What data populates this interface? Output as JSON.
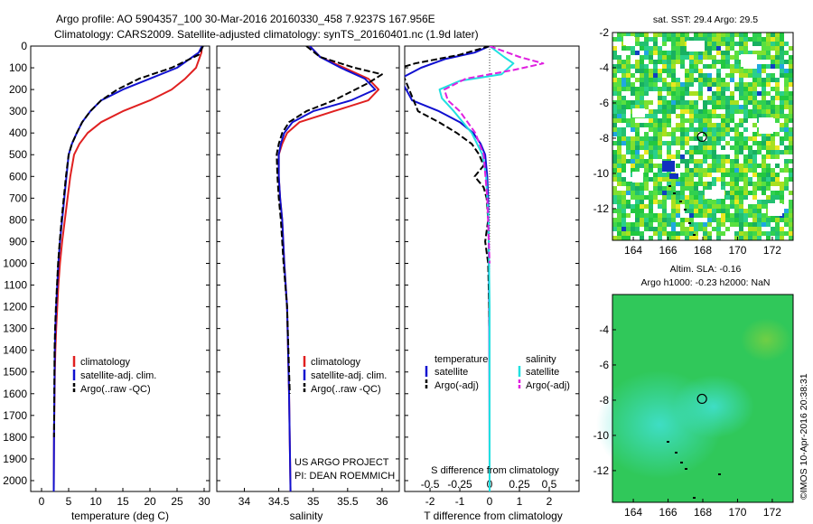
{
  "header": {
    "line1": "Argo profile: AO 5904357_100 30-Mar-2016 20160330_458 7.9237S 167.956E",
    "line2": "Climatology: CARS2009. Satellite-adjusted climatology: synTS_20160401.nc (1.9d later)"
  },
  "credits": {
    "project": "US ARGO PROJECT",
    "pi": "PI: DEAN ROEMMICH",
    "stamp": "©IMOS 10-Apr-2016 20:38:31"
  },
  "colors": {
    "climatology": "#e02020",
    "satellite": "#1010d0",
    "argo": "#000000",
    "salinity_sat": "#20e0e0",
    "salinity_argo": "#e020e0"
  },
  "chart_data": [
    {
      "type": "line",
      "panel": "temperature",
      "xlabel": "temperature (deg C)",
      "xlim": [
        -2,
        31
      ],
      "xticks": [
        0,
        5,
        10,
        15,
        20,
        25,
        30
      ],
      "ylim": [
        2050,
        0
      ],
      "yticks": [
        0,
        100,
        200,
        300,
        400,
        500,
        600,
        700,
        800,
        900,
        1000,
        1100,
        1200,
        1300,
        1400,
        1500,
        1600,
        1700,
        1800,
        1900,
        2000
      ],
      "legend_position": "lower-left",
      "series": [
        {
          "name": "climatology",
          "style": "solid",
          "color": "#e02020",
          "x": [
            29.6,
            29.5,
            28.5,
            26.5,
            24,
            20,
            15,
            11,
            8.5,
            7,
            6,
            5.3,
            4.8,
            4.3,
            3.8,
            3.4,
            3.1,
            2.9,
            2.7,
            2.55,
            2.45,
            2.3,
            2.25
          ],
          "y": [
            0,
            30,
            100,
            150,
            200,
            250,
            300,
            350,
            400,
            450,
            500,
            600,
            700,
            800,
            900,
            1000,
            1100,
            1200,
            1300,
            1400,
            1500,
            1800,
            2050
          ]
        },
        {
          "name": "satellite-adj. clim.",
          "style": "solid",
          "color": "#1010d0",
          "x": [
            29.6,
            29,
            25,
            20,
            15,
            11,
            9,
            7.5,
            6.5,
            5.6,
            5,
            4.6,
            4.2,
            3.8,
            3.4,
            3.1,
            2.9,
            2.7,
            2.55,
            2.45,
            2.3,
            2.25
          ],
          "y": [
            0,
            30,
            100,
            150,
            200,
            250,
            300,
            350,
            400,
            450,
            500,
            600,
            700,
            800,
            900,
            1000,
            1100,
            1200,
            1300,
            1400,
            1800,
            2050
          ]
        },
        {
          "name": "Argo(..raw -QC)",
          "style": "dashed",
          "color": "#000000",
          "x": [
            29.8,
            29,
            24,
            18,
            14,
            11,
            9,
            7.5,
            6.5,
            5.6,
            5,
            4.5,
            4.1,
            3.7,
            3.35,
            3.05,
            2.85,
            2.65,
            2.5,
            2.4,
            2.3
          ],
          "y": [
            0,
            40,
            100,
            150,
            200,
            250,
            300,
            350,
            400,
            450,
            500,
            600,
            700,
            800,
            900,
            1000,
            1100,
            1200,
            1300,
            1400,
            1800
          ]
        }
      ]
    },
    {
      "type": "line",
      "panel": "salinity",
      "xlabel": "salinity",
      "xlim": [
        33.6,
        36.25
      ],
      "xticks": [
        34,
        34.5,
        35,
        35.5,
        36
      ],
      "ylim": [
        2050,
        0
      ],
      "legend_position": "lower-left",
      "series": [
        {
          "name": "climatology",
          "style": "solid",
          "color": "#e02020",
          "x": [
            34.95,
            35.1,
            35.45,
            35.8,
            35.95,
            35.8,
            35.3,
            34.8,
            34.62,
            34.55,
            34.5,
            34.5,
            34.52,
            34.55,
            34.58,
            34.62,
            34.65,
            34.67
          ],
          "y": [
            0,
            50,
            100,
            150,
            200,
            250,
            300,
            350,
            400,
            450,
            500,
            600,
            700,
            800,
            1000,
            1200,
            1600,
            2050
          ]
        },
        {
          "name": "satellite-adj. clim.",
          "style": "solid",
          "color": "#1010d0",
          "x": [
            34.95,
            35.1,
            35.4,
            35.75,
            35.9,
            35.55,
            35.0,
            34.7,
            34.58,
            34.53,
            34.5,
            34.5,
            34.52,
            34.55,
            34.58,
            34.62,
            34.65,
            34.67
          ],
          "y": [
            0,
            50,
            100,
            150,
            200,
            250,
            300,
            350,
            400,
            450,
            500,
            600,
            700,
            800,
            1000,
            1200,
            1600,
            2050
          ]
        },
        {
          "name": "Argo(..raw -QC)",
          "style": "dashed",
          "color": "#000000",
          "x": [
            34.9,
            35.1,
            35.6,
            36.0,
            35.8,
            35.3,
            34.9,
            34.65,
            34.55,
            34.5,
            34.47,
            34.48,
            34.5,
            34.53,
            34.57,
            34.62,
            34.66
          ],
          "y": [
            0,
            50,
            100,
            130,
            170,
            250,
            300,
            350,
            400,
            450,
            500,
            600,
            700,
            800,
            1000,
            1200,
            1600
          ]
        }
      ],
      "annotations": [
        "US ARGO PROJECT",
        "PI: DEAN ROEMMICH"
      ]
    },
    {
      "type": "line",
      "panel": "difference",
      "xlabel": "T difference from climatology",
      "x2label": "S difference from climatology",
      "xlim": [
        -2.85,
        3.0
      ],
      "xticks": [
        -2,
        -1,
        0,
        1,
        2
      ],
      "x2lim": [
        -0.7125,
        0.75
      ],
      "x2ticks": [
        -0.5,
        -0.25,
        0,
        0.25,
        0.5
      ],
      "x2ticklabels": [
        "-0.5",
        "-0.25",
        "0",
        "0.25",
        "0.5"
      ],
      "ylim": [
        2050,
        0
      ],
      "legend_groups": [
        "temperature",
        "salinity"
      ],
      "legend_position": "lower-left",
      "series": [
        {
          "name": "satellite",
          "group": "temperature",
          "style": "solid",
          "color": "#1010d0",
          "x": [
            0,
            -0.5,
            -1.5,
            -2.3,
            -3.0,
            -2.6,
            -1.7,
            -1.0,
            -0.55,
            -0.3,
            -0.15,
            -0.08,
            -0.05,
            -0.03,
            -0.01,
            0
          ],
          "y": [
            0,
            30,
            60,
            100,
            150,
            250,
            300,
            350,
            400,
            450,
            500,
            600,
            700,
            900,
            1300,
            2050
          ]
        },
        {
          "name": "Argo(-adj)",
          "group": "temperature",
          "style": "dashed",
          "color": "#000000",
          "x": [
            0,
            -1.0,
            -2.5,
            -3.0,
            -2.4,
            -1.7,
            -1.1,
            -0.6,
            -0.35,
            -0.2,
            -0.5,
            -0.2,
            -0.1,
            -0.05,
            -0.15,
            -0.05,
            0
          ],
          "y": [
            0,
            40,
            80,
            100,
            300,
            350,
            400,
            450,
            500,
            550,
            600,
            650,
            700,
            800,
            900,
            1000,
            1300
          ]
        },
        {
          "name": "satellite",
          "group": "salinity",
          "style": "solid",
          "color": "#20e0e0",
          "x": [
            0,
            0.12,
            0.2,
            0.1,
            -0.25,
            -0.42,
            -0.4,
            -0.3,
            -0.15,
            -0.06,
            -0.03,
            -0.01,
            0,
            0
          ],
          "y": [
            0,
            50,
            80,
            130,
            160,
            200,
            240,
            300,
            400,
            500,
            600,
            800,
            1200,
            2050
          ]
        },
        {
          "name": "Argo(-adj)",
          "group": "salinity",
          "style": "dashed",
          "color": "#e020e0",
          "x": [
            0,
            0.25,
            0.45,
            0.2,
            -0.2,
            -0.38,
            -0.35,
            -0.25,
            -0.12,
            -0.05,
            -0.02,
            0
          ],
          "y": [
            0,
            50,
            80,
            110,
            150,
            200,
            250,
            300,
            400,
            500,
            700,
            1000
          ]
        }
      ]
    },
    {
      "type": "heatmap",
      "panel": "sst-map",
      "title": "sat. SST: 29.4 Argo: 29.5",
      "xlim": [
        162.8,
        173.2
      ],
      "xticks": [
        164,
        166,
        168,
        170,
        172
      ],
      "ylim": [
        -13.8,
        -2
      ],
      "yticks": [
        -12,
        -10,
        -8,
        -6,
        -4,
        -2
      ],
      "marker": {
        "lon": 167.956,
        "lat": -7.9237
      }
    },
    {
      "type": "heatmap",
      "panel": "sla-map",
      "title": "Altim. SLA: -0.16",
      "subtitle": "Argo h1000: -0.23 h2000: NaN",
      "xlim": [
        162.8,
        173.2
      ],
      "xticks": [
        164,
        166,
        168,
        170,
        172
      ],
      "ylim": [
        -13.8,
        -2
      ],
      "yticks": [
        -12,
        -10,
        -8,
        -6,
        -4
      ],
      "marker": {
        "lon": 167.956,
        "lat": -7.9237
      }
    }
  ]
}
